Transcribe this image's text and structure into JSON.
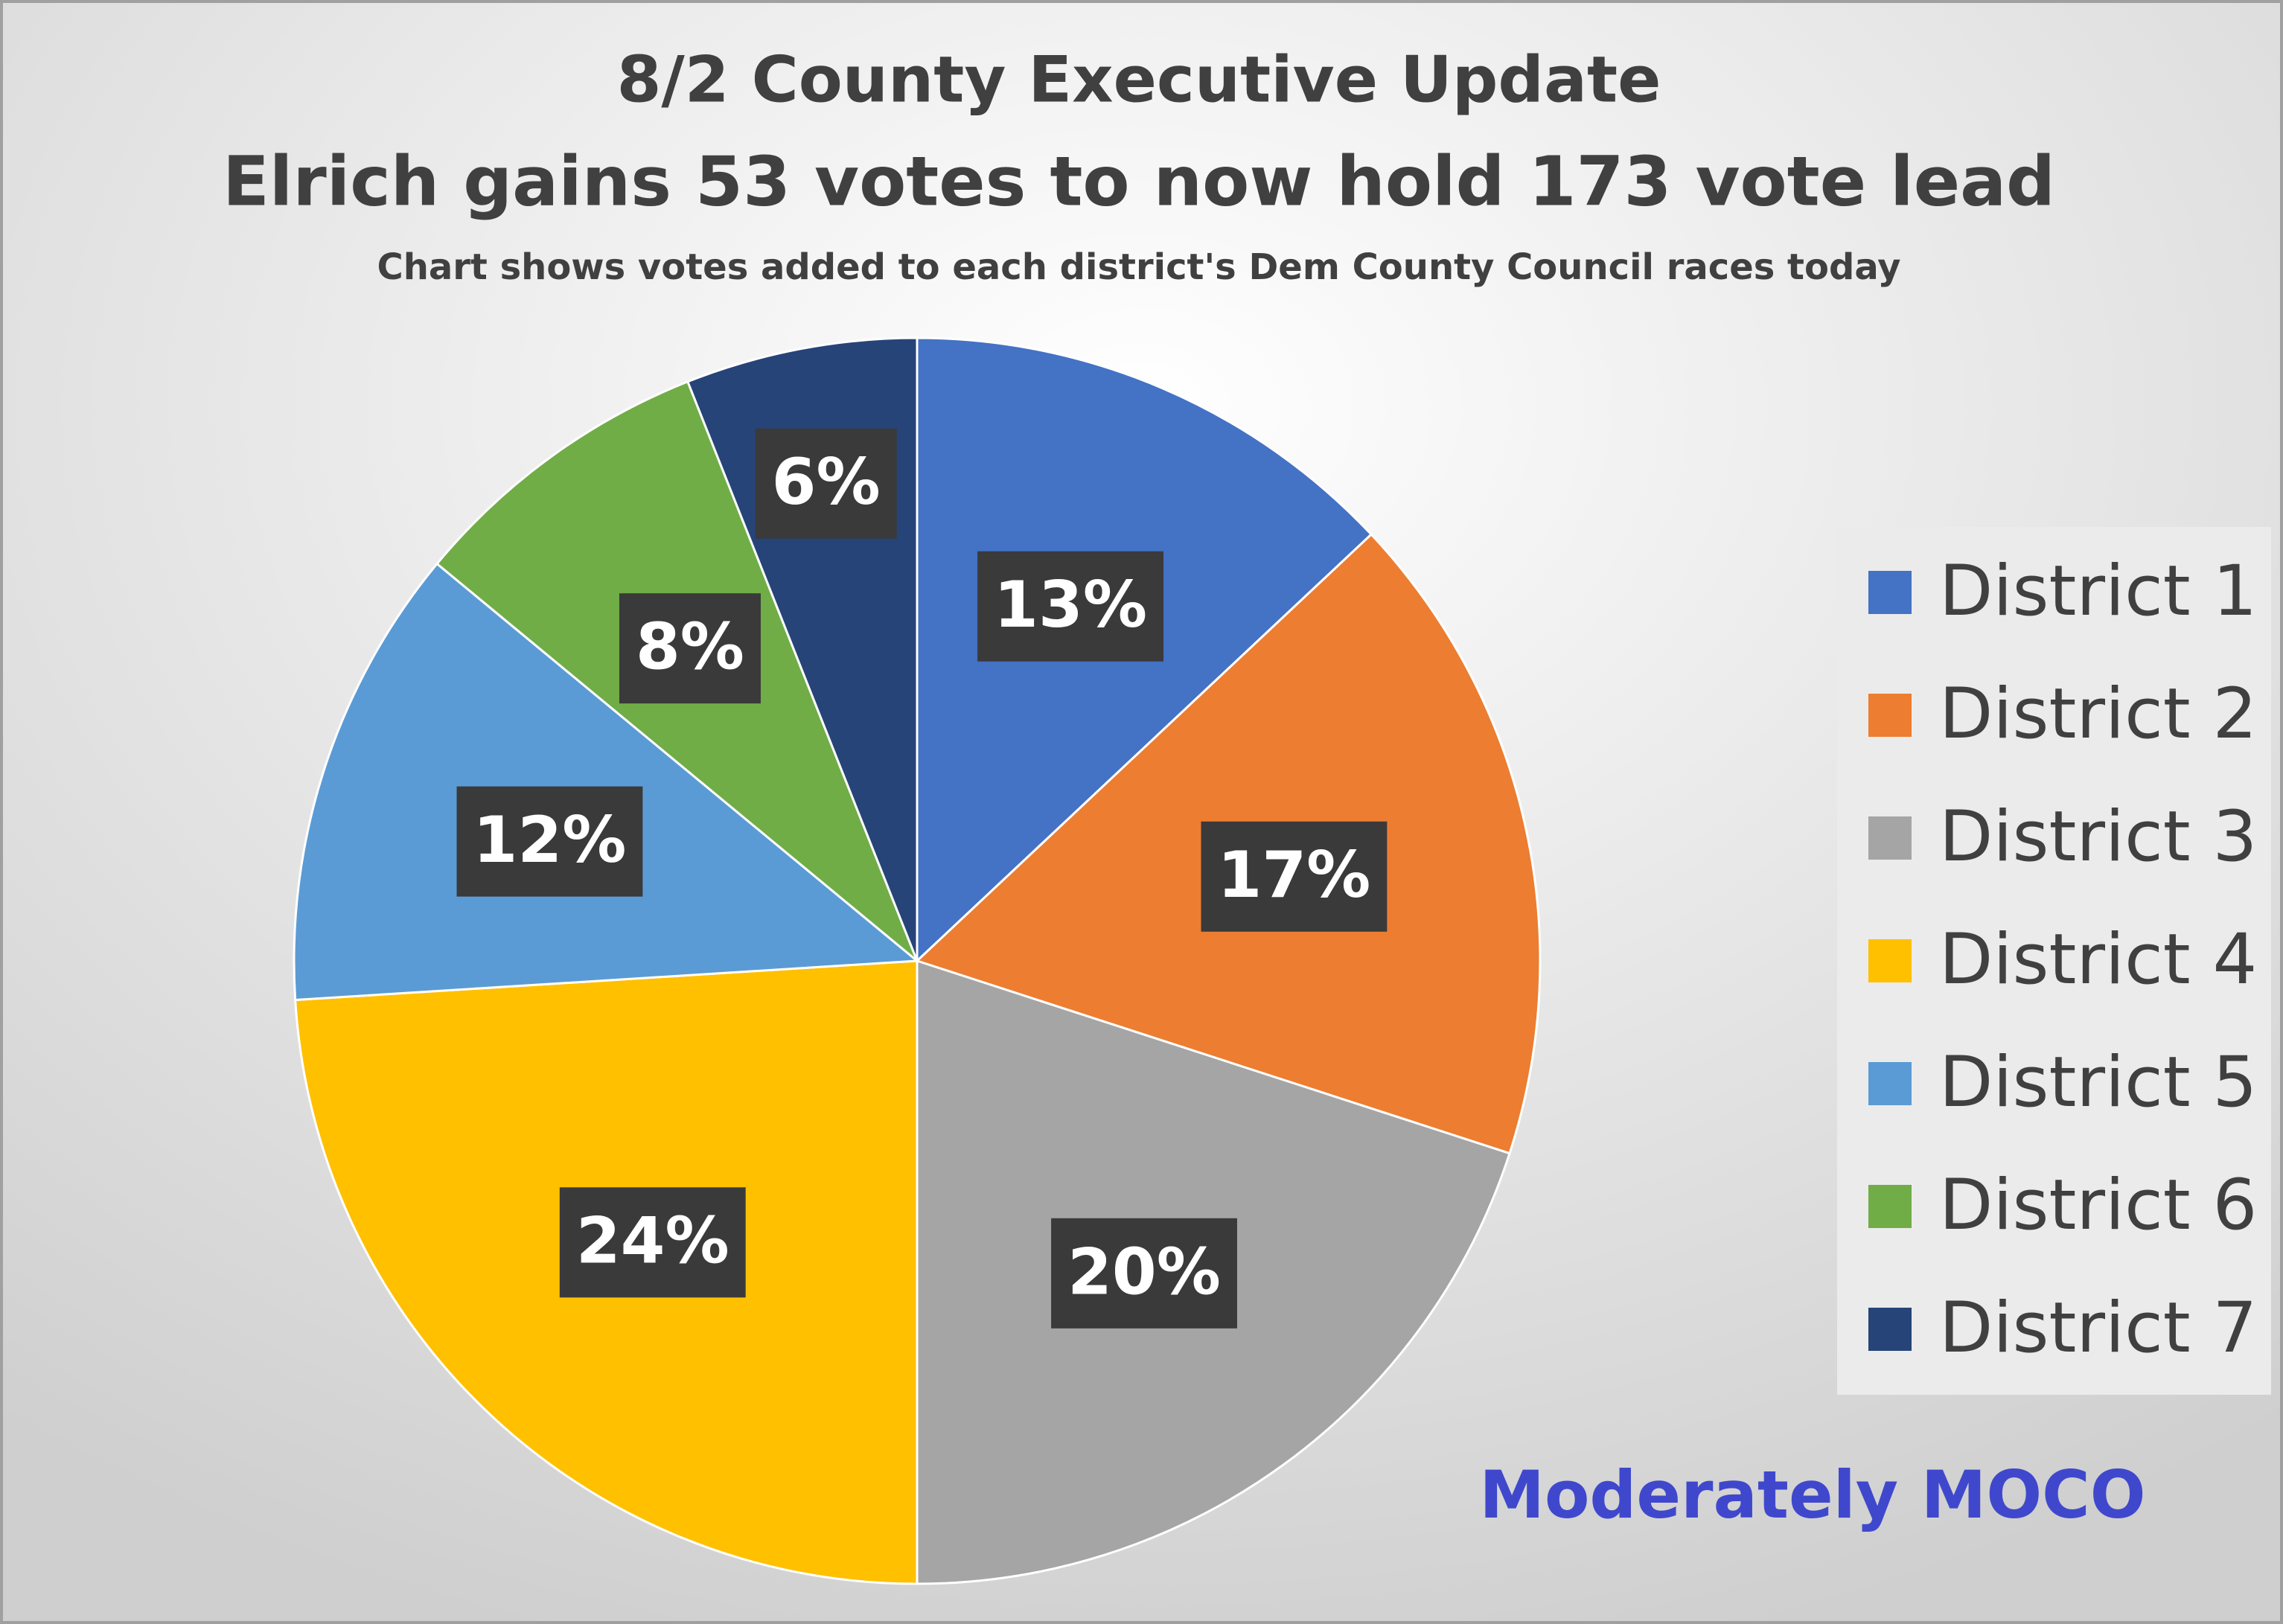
{
  "chart_data": {
    "type": "pie",
    "title": "8/2 County Executive Update",
    "subtitle": "Elrich gains 53 votes to now hold 173 vote lead",
    "note": "Chart shows votes added to each district's Dem County Council races today",
    "categories": [
      "District 1",
      "District 2",
      "District 3",
      "District 4",
      "District 5",
      "District 6",
      "District 7"
    ],
    "values": [
      13,
      17,
      20,
      24,
      12,
      8,
      6
    ],
    "value_labels": [
      "13%",
      "17%",
      "20%",
      "24%",
      "12%",
      "8%",
      "6%"
    ],
    "colors": [
      "#4472c4",
      "#ed7d31",
      "#a5a5a5",
      "#ffc000",
      "#5b9bd5",
      "#70ad47",
      "#264478"
    ],
    "legend": "right",
    "watermark": "Moderately MOCO"
  }
}
